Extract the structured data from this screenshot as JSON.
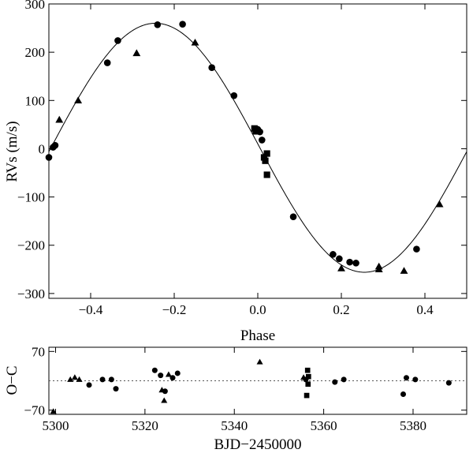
{
  "chart_data": [
    {
      "type": "scatter",
      "xlabel": "Phase",
      "ylabel": "RVs (m/s)",
      "xlim": [
        -0.5,
        0.5
      ],
      "ylim": [
        -310,
        300
      ],
      "xticks": [
        -0.4,
        -0.2,
        0.0,
        0.2,
        0.4
      ],
      "xtick_labels": [
        "−0.4",
        "−0.2",
        "0.0",
        "0.2",
        "0.4"
      ],
      "yticks": [
        -300,
        -200,
        -100,
        0,
        100,
        200,
        300
      ],
      "ytick_labels": [
        "−300",
        "−200",
        "−100",
        "0",
        "100",
        "200",
        "300"
      ],
      "grid": false,
      "model_curve": {
        "amplitude": 258,
        "offset": 2,
        "peak_phase": -0.245
      },
      "series": [
        {
          "marker": "circle",
          "points": [
            [
              -0.5,
              -18
            ],
            [
              -0.49,
              3
            ],
            [
              -0.485,
              7
            ],
            [
              -0.36,
              178
            ],
            [
              -0.335,
              224
            ],
            [
              -0.24,
              257
            ],
            [
              -0.18,
              258
            ],
            [
              -0.11,
              168
            ],
            [
              -0.057,
              110
            ],
            [
              0.0,
              40
            ],
            [
              0.005,
              35
            ],
            [
              0.01,
              18
            ],
            [
              0.085,
              -141
            ],
            [
              0.18,
              -219
            ],
            [
              0.195,
              -228
            ],
            [
              0.22,
              -235
            ],
            [
              0.235,
              -237
            ],
            [
              0.38,
              -208
            ]
          ]
        },
        {
          "marker": "triangle",
          "points": [
            [
              -0.475,
              60
            ],
            [
              -0.43,
              100
            ],
            [
              -0.29,
              198
            ],
            [
              -0.15,
              220
            ],
            [
              0.2,
              -248
            ],
            [
              0.29,
              -244
            ],
            [
              0.29,
              -250
            ],
            [
              0.35,
              -253
            ],
            [
              0.435,
              -115
            ]
          ]
        },
        {
          "marker": "square",
          "points": [
            [
              -0.008,
              42
            ],
            [
              -0.005,
              36
            ],
            [
              0.015,
              -18
            ],
            [
              0.018,
              -25
            ],
            [
              0.022,
              -10
            ],
            [
              0.022,
              -54
            ]
          ]
        }
      ]
    },
    {
      "type": "scatter",
      "xlabel": "BJD−2450000",
      "ylabel": "O−C",
      "xlim": [
        5298.5,
        5392
      ],
      "ylim": [
        -80,
        80
      ],
      "xticks": [
        5300,
        5320,
        5340,
        5360,
        5380
      ],
      "xtick_labels": [
        "5300",
        "5320",
        "5340",
        "5360",
        "5380"
      ],
      "yticks": [
        -70,
        70
      ],
      "ytick_labels": [
        "−70",
        "70"
      ],
      "zero_line": "dotted",
      "grid": false,
      "series": [
        {
          "marker": "circle",
          "points": [
            [
              5307.5,
              -10
            ],
            [
              5310.5,
              3
            ],
            [
              5312.5,
              3
            ],
            [
              5313.5,
              -19
            ],
            [
              5322.2,
              25
            ],
            [
              5323.5,
              13
            ],
            [
              5324.5,
              -25
            ],
            [
              5326.2,
              7
            ],
            [
              5327.3,
              18
            ],
            [
              5356,
              3
            ],
            [
              5362.5,
              -3
            ],
            [
              5364.5,
              3
            ],
            [
              5377.8,
              -32
            ],
            [
              5378.5,
              7
            ],
            [
              5380.5,
              3
            ],
            [
              5388,
              -5
            ]
          ]
        },
        {
          "marker": "triangle",
          "points": [
            [
              5299.5,
              -73
            ],
            [
              5303.3,
              3
            ],
            [
              5304.3,
              8
            ],
            [
              5305.3,
              3
            ],
            [
              5323.8,
              -22
            ],
            [
              5324.3,
              -47
            ],
            [
              5325.3,
              15
            ],
            [
              5345.7,
              45
            ],
            [
              5355.5,
              8
            ]
          ]
        },
        {
          "marker": "square",
          "points": [
            [
              5356.2,
              -35
            ],
            [
              5356.4,
              25
            ],
            [
              5356.5,
              -8
            ],
            [
              5356.6,
              10
            ]
          ]
        }
      ]
    }
  ]
}
